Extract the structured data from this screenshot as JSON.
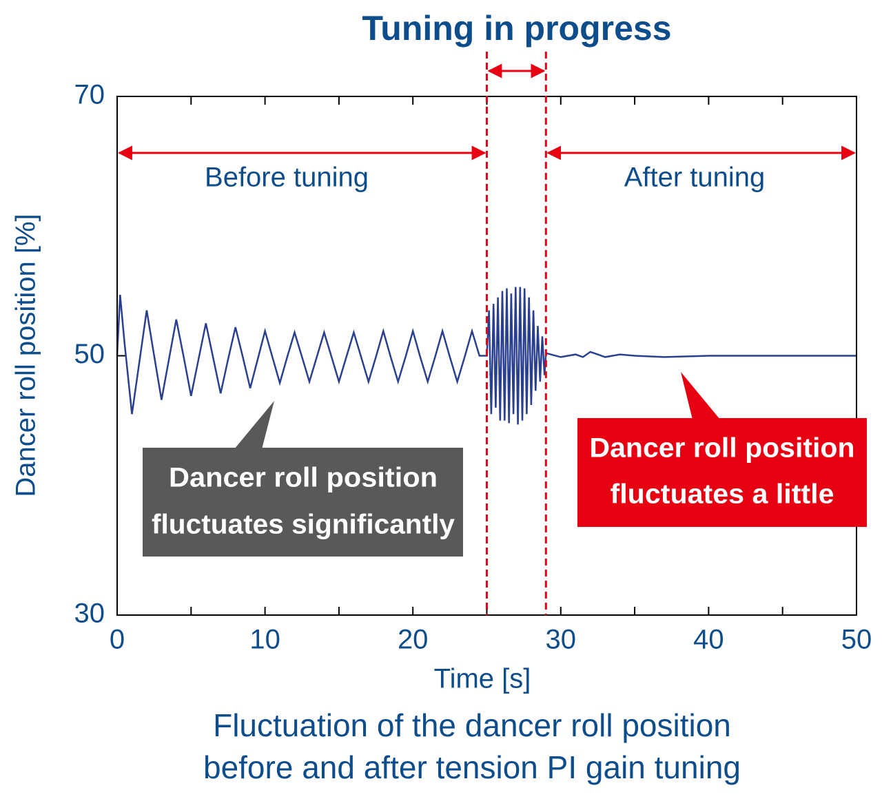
{
  "chart_data": {
    "type": "line",
    "title": "Tuning in progress",
    "xlabel": "Time [s]",
    "ylabel": "Dancer roll position [%]",
    "caption": [
      "Fluctuation of the dancer roll position",
      "before and after tension PI gain tuning"
    ],
    "annotations": {
      "before": "Before tuning",
      "after": "After tuning",
      "before_note": [
        "Dancer roll position",
        "fluctuates significantly"
      ],
      "after_note": [
        "Dancer roll position",
        "fluctuates a little"
      ]
    },
    "tuning_start": 25,
    "tuning_end": 29,
    "xlim": [
      0,
      50
    ],
    "ylim": [
      30,
      70
    ],
    "xticks": [
      0,
      10,
      20,
      30,
      40,
      50
    ],
    "xminorticks": [
      5,
      15,
      25,
      35,
      45
    ],
    "yticks": [
      30,
      50,
      70
    ],
    "series": [
      {
        "name": "Dancer roll position",
        "color": "#2a3f8f",
        "x": [
          0,
          0.2,
          0.5,
          1,
          1.5,
          2,
          2.5,
          3,
          3.5,
          4,
          4.5,
          5,
          5.5,
          6,
          6.5,
          7,
          7.5,
          8,
          8.5,
          9,
          9.5,
          10,
          10.5,
          11,
          11.5,
          12,
          12.5,
          13,
          13.5,
          14,
          14.5,
          15,
          15.5,
          16,
          16.5,
          17,
          17.5,
          18,
          18.5,
          19,
          19.5,
          20,
          20.5,
          21,
          21.5,
          22,
          22.5,
          23,
          23.5,
          24,
          24.5,
          25,
          25.15,
          25.3,
          25.45,
          25.6,
          25.75,
          25.9,
          26.05,
          26.2,
          26.35,
          26.5,
          26.65,
          26.8,
          26.95,
          27.1,
          27.25,
          27.4,
          27.55,
          27.7,
          27.85,
          28,
          28.15,
          28.3,
          28.45,
          28.6,
          28.75,
          28.9,
          29,
          30,
          31,
          31.5,
          32,
          32.5,
          33,
          34,
          35,
          37,
          40,
          45,
          50
        ],
        "values": [
          50,
          54.7,
          51,
          45.5,
          49.5,
          53.5,
          50,
          46.6,
          49.7,
          52.8,
          49.9,
          46.9,
          49.7,
          52.5,
          49.8,
          47.1,
          49.7,
          52.2,
          49.9,
          47.5,
          49.7,
          51.9,
          49.9,
          47.9,
          49.9,
          51.8,
          49.9,
          48,
          49.9,
          51.8,
          49.9,
          48,
          49.9,
          51.8,
          49.9,
          48,
          49.9,
          51.9,
          49.9,
          48,
          49.9,
          51.9,
          49.9,
          48,
          49.9,
          51.9,
          49.9,
          48,
          49.9,
          51.9,
          50,
          50,
          53.5,
          45.5,
          54,
          46,
          54.5,
          45,
          55,
          45,
          55.2,
          44.8,
          54.8,
          45.5,
          55.3,
          44.7,
          55.3,
          45,
          55.2,
          45.5,
          54.5,
          46.2,
          53.5,
          47.3,
          52.3,
          48,
          51.5,
          48.5,
          50.2,
          49.9,
          50.1,
          49.9,
          50.3,
          50.1,
          49.9,
          50.1,
          50,
          49.9,
          50,
          50,
          50
        ]
      }
    ]
  }
}
